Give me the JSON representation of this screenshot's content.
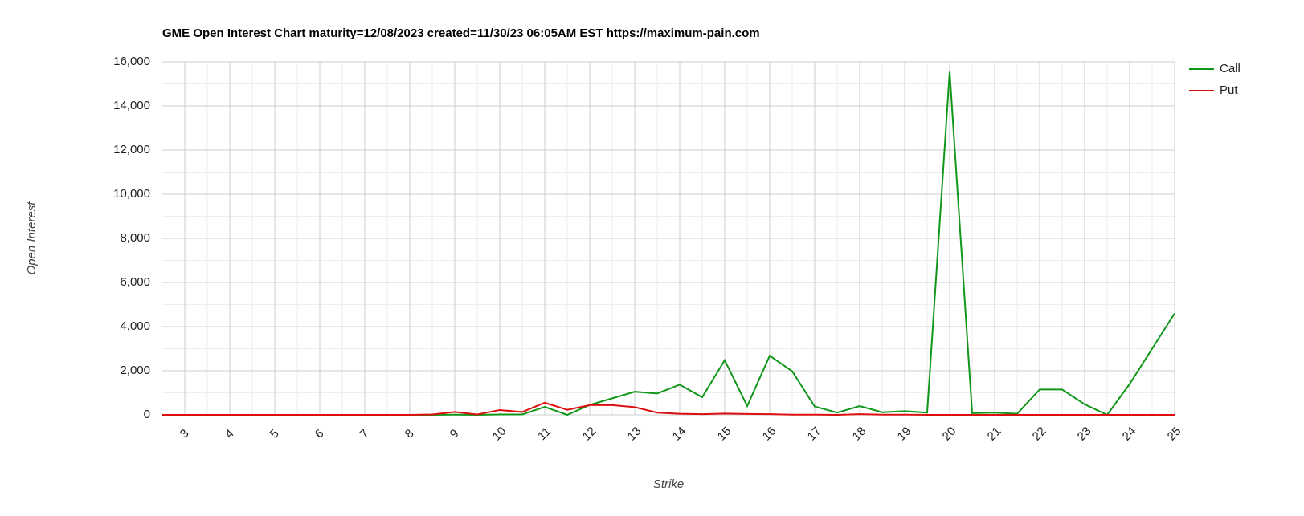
{
  "chart_data": {
    "type": "line",
    "title": "GME Open Interest Chart maturity=12/08/2023 created=11/30/23 06:05AM EST https://maximum-pain.com",
    "x_label": "Strike",
    "y_label": "Open Interest",
    "x": [
      2.5,
      3,
      3.5,
      4,
      4.5,
      5,
      5.5,
      6,
      6.5,
      7,
      7.5,
      8,
      8.5,
      9,
      9.5,
      10,
      10.5,
      11,
      11.5,
      12,
      12.5,
      13,
      13.5,
      14,
      14.5,
      15,
      15.5,
      16,
      16.5,
      17,
      17.5,
      18,
      18.5,
      19,
      19.5,
      20,
      20.5,
      21,
      21.5,
      22,
      22.5,
      23,
      23.5,
      24,
      24.5,
      25
    ],
    "series": [
      {
        "name": "Call",
        "color": "#109618",
        "values": [
          0,
          0,
          0,
          0,
          0,
          0,
          0,
          0,
          0,
          0,
          0,
          0,
          0,
          10,
          0,
          20,
          20,
          360,
          0,
          450,
          750,
          1050,
          970,
          1370,
          800,
          2480,
          400,
          2680,
          1980,
          380,
          100,
          400,
          120,
          170,
          100,
          15550,
          80,
          100,
          50,
          1150,
          1150,
          480,
          0,
          1400,
          3000,
          4600
        ]
      },
      {
        "name": "Put",
        "color": "#dc1010",
        "values": [
          0,
          0,
          0,
          0,
          0,
          0,
          0,
          0,
          0,
          0,
          0,
          0,
          20,
          130,
          20,
          220,
          130,
          550,
          230,
          440,
          440,
          350,
          100,
          50,
          30,
          60,
          40,
          30,
          10,
          10,
          0,
          30,
          10,
          10,
          0,
          0,
          0,
          0,
          0,
          0,
          0,
          0,
          0,
          0,
          0,
          0
        ]
      }
    ],
    "xlim": [
      2.5,
      25
    ],
    "xticks": [
      3,
      4,
      5,
      6,
      7,
      8,
      9,
      10,
      11,
      12,
      13,
      14,
      15,
      16,
      17,
      18,
      19,
      20,
      21,
      22,
      23,
      24,
      25
    ],
    "ylim": [
      0,
      16000
    ],
    "yticks": [
      0,
      {
        "value": 2000,
        "label": "2,000"
      },
      {
        "value": 4000,
        "label": "4,000"
      },
      {
        "value": 6000,
        "label": "6,000"
      },
      {
        "value": 8000,
        "label": "8,000"
      },
      {
        "value": 10000,
        "label": "10,000"
      },
      {
        "value": 12000,
        "label": "12,000"
      },
      {
        "value": 14000,
        "label": "14,000"
      },
      {
        "value": 16000,
        "label": "16,000"
      }
    ],
    "grid": true,
    "legend": "right"
  }
}
